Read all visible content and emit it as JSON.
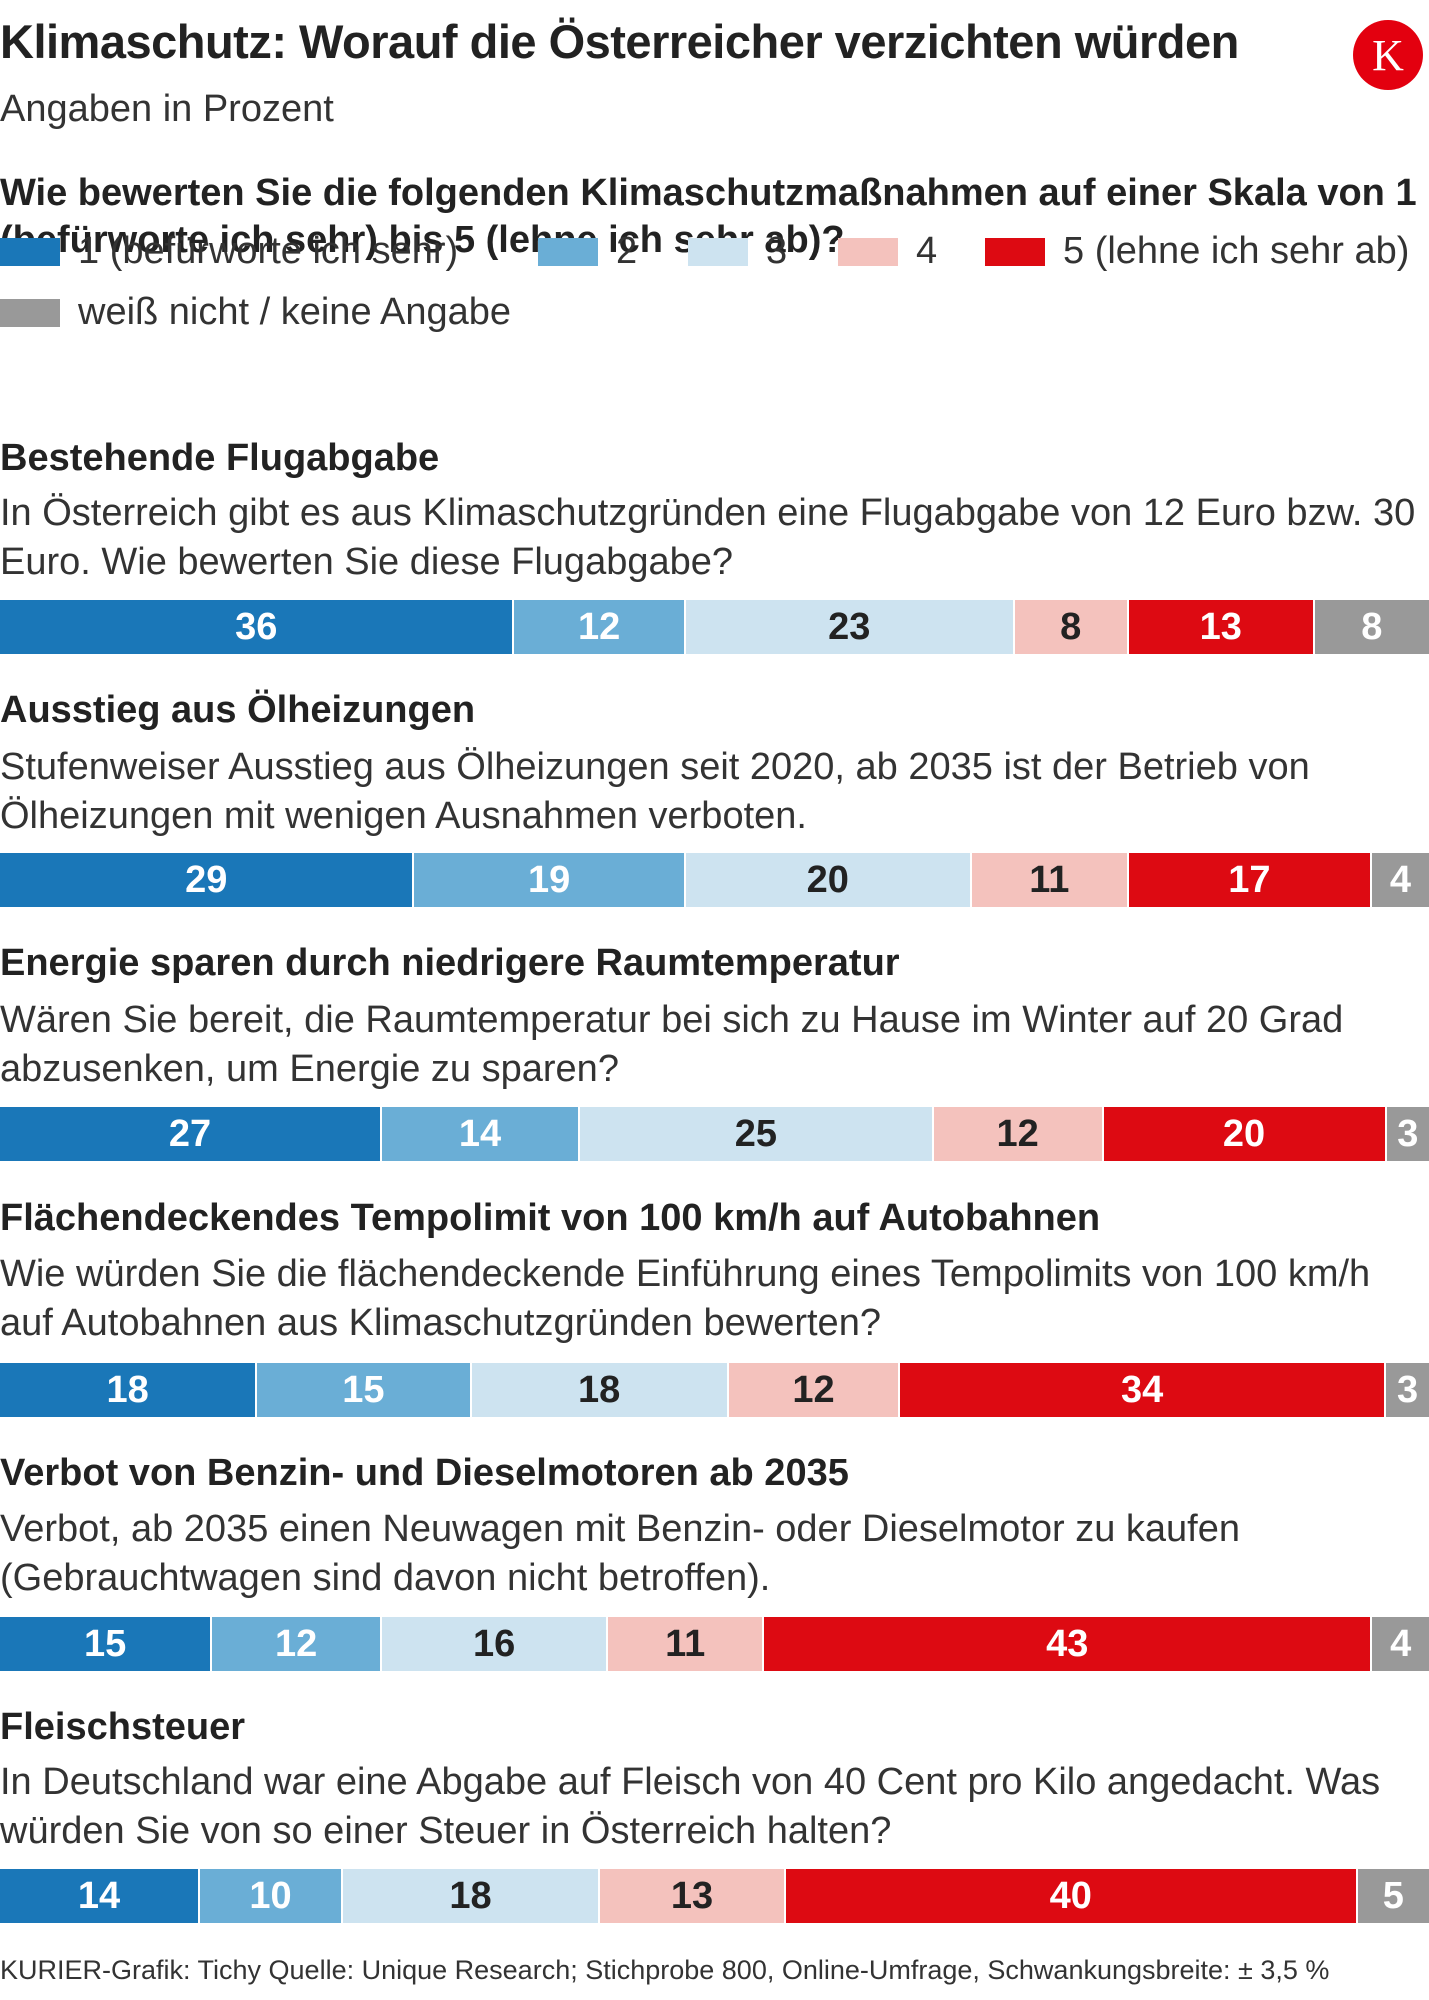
{
  "header": {
    "title": "Klimaschutz: Worauf die Österreicher verzichten würden",
    "subtitle": "Angaben in Prozent",
    "logo_letter": "K",
    "question": "Wie bewerten Sie die folgenden Klimaschutzmaßnahmen auf einer Skala von 1 (befürworte ich sehr) bis 5 (lehne ich sehr ab)?"
  },
  "legend": [
    {
      "label": "1 (befürworte ich sehr)",
      "color": "#1a77b8"
    },
    {
      "label": "2",
      "color": "#6aaed6"
    },
    {
      "label": "3",
      "color": "#cde3f0"
    },
    {
      "label": "4",
      "color": "#f4c2bd"
    },
    {
      "label": "5 (lehne ich sehr ab)",
      "color": "#dd0a12"
    },
    {
      "label": "weiß nicht / keine Angabe",
      "color": "#999999"
    }
  ],
  "chart_data": {
    "type": "bar",
    "orientation": "horizontal-stacked-100",
    "categories": [
      "Bestehende Flugabgabe",
      "Ausstieg aus Ölheizungen",
      "Energie sparen durch niedrigere Raumtemperatur",
      "Flächendeckendes Tempolimit von 100 km/h auf Autobahnen",
      "Verbot von Benzin- und Dieselmotoren ab 2035",
      "Fleischsteuer"
    ],
    "descriptions": [
      "In Österreich gibt es aus Klimaschutzgründen eine Flugabgabe von 12 Euro bzw. 30 Euro. Wie bewerten Sie diese Flugabgabe?",
      "Stufenweiser Ausstieg aus Ölheizungen seit 2020, ab 2035 ist der Betrieb von Ölheizungen mit wenigen Ausnahmen verboten.",
      "Wären Sie bereit, die Raumtemperatur bei sich zu Hause im Winter auf 20 Grad abzusenken, um Energie zu sparen?",
      "Wie würden Sie die flächendeckende Einführung eines Tempolimits von 100 km/h auf Autobahnen aus Klimaschutzgründen bewerten?",
      "Verbot, ab 2035 einen Neuwagen mit Benzin- oder Dieselmotor zu kaufen (Gebrauchtwagen sind davon nicht betroffen).",
      "In Deutschland war eine Abgabe auf Fleisch von 40 Cent pro Kilo angedacht. Was würden Sie von so einer Steuer in Österreich halten?"
    ],
    "series": [
      {
        "name": "1 (befürworte ich sehr)",
        "values": [
          36,
          29,
          27,
          18,
          15,
          14
        ]
      },
      {
        "name": "2",
        "values": [
          12,
          19,
          14,
          15,
          12,
          10
        ]
      },
      {
        "name": "3",
        "values": [
          23,
          20,
          25,
          18,
          16,
          18
        ]
      },
      {
        "name": "4",
        "values": [
          8,
          11,
          12,
          12,
          11,
          13
        ]
      },
      {
        "name": "5 (lehne ich sehr ab)",
        "values": [
          13,
          17,
          20,
          34,
          43,
          40
        ]
      },
      {
        "name": "weiß nicht / keine Angabe",
        "values": [
          8,
          4,
          3,
          3,
          4,
          5
        ]
      }
    ],
    "label_colors": [
      "#ffffff",
      "#ffffff",
      "#222222",
      "#222222",
      "#ffffff",
      "#ffffff"
    ],
    "unit": "Prozent"
  },
  "footer": "KURIER-Grafik: Tichy  Quelle: Unique Research; Stichprobe 800, Online-Umfrage, Schwankungsbreite: ± 3,5 %"
}
